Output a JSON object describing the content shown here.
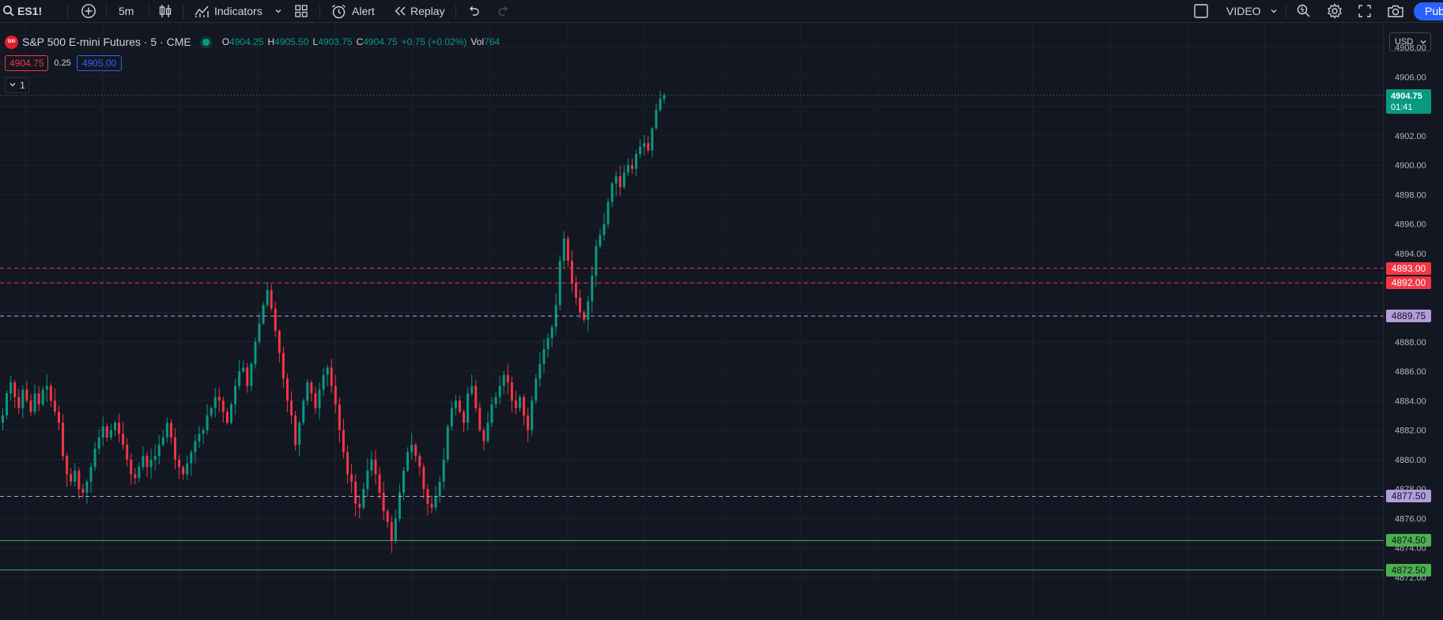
{
  "toolbar": {
    "symbol": "ES1!",
    "interval": "5m",
    "indicators_label": "Indicators",
    "alert_label": "Alert",
    "replay_label": "Replay",
    "layout_name": "VIDEO",
    "publish_label": "Publ"
  },
  "legend": {
    "logo_text": "500",
    "title": "S&P 500 E-mini Futures · 5 · CME",
    "open_key": "O",
    "open": "4904.25",
    "high_key": "H",
    "high": "4905.50",
    "low_key": "L",
    "low": "4903.75",
    "close_key": "C",
    "close": "4904.75",
    "change": "+0.75 (+0.02%)",
    "vol_key": "Vol",
    "volume": "764"
  },
  "bid": "4904.75",
  "spread": "0.25",
  "ask": "4905.00",
  "collapse_count": "1",
  "currency": "USD",
  "colors": {
    "background": "#131722",
    "up": "#089981",
    "down": "#f23645",
    "accent": "#2962ff",
    "level_red": "#f23645",
    "level_purple": "#b39ddb",
    "level_green": "#4caf50"
  },
  "price_levels": [
    {
      "price": 4893.0,
      "label": "4893.00",
      "style": "red"
    },
    {
      "price": 4892.0,
      "label": "4892.00",
      "style": "red"
    },
    {
      "price": 4889.75,
      "label": "4889.75",
      "style": "purple"
    },
    {
      "price": 4877.5,
      "label": "4877.50",
      "style": "purple"
    },
    {
      "price": 4874.5,
      "label": "4874.50",
      "style": "green"
    },
    {
      "price": 4872.5,
      "label": "4872.50",
      "style": "green"
    }
  ],
  "current_price": {
    "label": "4904.75",
    "countdown": "01:41"
  },
  "chart_data": {
    "type": "candlestick",
    "ylim": [
      4871.5,
      4910.0
    ],
    "y_ticks": [
      "4872.00",
      "4874.00",
      "4876.00",
      "4878.00",
      "4880.00",
      "4882.00",
      "4884.00",
      "4886.00",
      "4888.00",
      "4890.00",
      "4892.00",
      "4894.00",
      "4896.00",
      "4898.00",
      "4900.00",
      "4902.00",
      "4904.00",
      "4906.00",
      "4908.00"
    ],
    "close": [
      4883.0,
      4884.5,
      4885.25,
      4884.25,
      4883.5,
      4884.75,
      4884.0,
      4883.25,
      4884.5,
      4883.75,
      4884.75,
      4885.0,
      4884.0,
      4883.25,
      4882.5,
      4880.25,
      4879.0,
      4878.5,
      4879.25,
      4878.0,
      4877.75,
      4878.5,
      4879.5,
      4880.75,
      4881.5,
      4882.25,
      4881.5,
      4882.0,
      4882.5,
      4881.75,
      4881.0,
      4880.0,
      4879.0,
      4878.75,
      4879.5,
      4880.25,
      4879.5,
      4880.0,
      4880.25,
      4881.0,
      4881.5,
      4882.5,
      4881.5,
      4880.0,
      4879.5,
      4879.0,
      4879.75,
      4880.5,
      4881.25,
      4881.75,
      4882.0,
      4883.0,
      4883.5,
      4884.25,
      4884.0,
      4883.25,
      4882.5,
      4883.75,
      4885.0,
      4886.0,
      4886.25,
      4885.0,
      4886.5,
      4888.0,
      4889.25,
      4890.5,
      4891.5,
      4890.25,
      4888.75,
      4887.25,
      4885.5,
      4884.0,
      4883.0,
      4881.0,
      4882.5,
      4884.0,
      4885.25,
      4884.5,
      4883.5,
      4884.75,
      4885.75,
      4886.25,
      4885.0,
      4883.75,
      4882.0,
      4880.5,
      4879.0,
      4878.5,
      4877.0,
      4876.75,
      4878.0,
      4879.25,
      4880.0,
      4879.0,
      4877.75,
      4876.5,
      4875.75,
      4874.5,
      4876.0,
      4877.75,
      4879.25,
      4880.5,
      4881.0,
      4880.25,
      4879.5,
      4878.0,
      4877.0,
      4876.75,
      4877.5,
      4878.5,
      4880.0,
      4882.25,
      4883.5,
      4884.0,
      4883.25,
      4882.5,
      4884.5,
      4885.0,
      4883.5,
      4882.0,
      4881.25,
      4882.5,
      4883.75,
      4884.25,
      4885.0,
      4885.75,
      4885.25,
      4884.0,
      4883.5,
      4884.25,
      4883.0,
      4882.0,
      4884.0,
      4885.5,
      4886.5,
      4887.5,
      4888.25,
      4889.0,
      4890.5,
      4893.5,
      4895.0,
      4893.5,
      4892.0,
      4891.0,
      4890.0,
      4889.5,
      4890.75,
      4892.5,
      4894.5,
      4895.25,
      4896.0,
      4897.5,
      4898.75,
      4899.25,
      4898.5,
      4899.5,
      4900.0,
      4899.75,
      4900.75,
      4901.25,
      4901.5,
      4901.0,
      4902.5,
      4903.75,
      4904.5,
      4904.75
    ]
  }
}
